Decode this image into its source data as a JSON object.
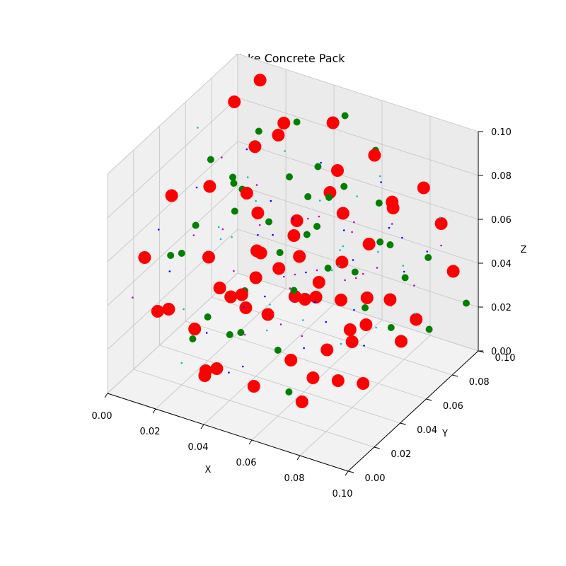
{
  "chart_data": {
    "type": "scatter",
    "projection": "3d",
    "title": "Fake Concrete Pack",
    "xlabel": "X",
    "ylabel": "Y",
    "zlabel": "Z",
    "xlim": [
      0,
      0.1
    ],
    "ylim": [
      0,
      0.1
    ],
    "zlim": [
      0,
      0.1
    ],
    "xticks": [
      "0.00",
      "0.02",
      "0.04",
      "0.06",
      "0.08",
      "0.10"
    ],
    "yticks": [
      "0.00",
      "0.02",
      "0.04",
      "0.06",
      "0.08",
      "0.10"
    ],
    "zticks": [
      "0.00",
      "0.02",
      "0.04",
      "0.06",
      "0.08",
      "0.10"
    ],
    "grid": true,
    "series": [
      {
        "color": "#ff0000",
        "size": "large",
        "points": [
          [
            0.004,
            0.09,
            0.085
          ],
          [
            0.012,
            0.095,
            0.095
          ],
          [
            0.018,
            0.08,
            0.075
          ],
          [
            0.025,
            0.085,
            0.08
          ],
          [
            0.03,
            0.06,
            0.06
          ],
          [
            0.035,
            0.05,
            0.05
          ],
          [
            0.04,
            0.04,
            0.045
          ],
          [
            0.045,
            0.06,
            0.055
          ],
          [
            0.05,
            0.055,
            0.05
          ],
          [
            0.06,
            0.07,
            0.065
          ],
          [
            0.065,
            0.06,
            0.05
          ],
          [
            0.07,
            0.05,
            0.04
          ],
          [
            0.075,
            0.08,
            0.07
          ],
          [
            0.08,
            0.04,
            0.03
          ],
          [
            0.085,
            0.06,
            0.04
          ],
          [
            0.09,
            0.03,
            0.02
          ],
          [
            0.095,
            0.05,
            0.03
          ],
          [
            0.01,
            0.02,
            0.03
          ],
          [
            0.02,
            0.03,
            0.02
          ],
          [
            0.03,
            0.02,
            0.01
          ],
          [
            0.04,
            0.01,
            0.02
          ],
          [
            0.05,
            0.02,
            0.01
          ],
          [
            0.06,
            0.03,
            0.02
          ],
          [
            0.07,
            0.02,
            0.01
          ],
          [
            0.08,
            0.01,
            0.03
          ],
          [
            0.015,
            0.05,
            0.04
          ],
          [
            0.025,
            0.04,
            0.035
          ],
          [
            0.035,
            0.03,
            0.04
          ],
          [
            0.045,
            0.04,
            0.03
          ],
          [
            0.055,
            0.05,
            0.035
          ],
          [
            0.065,
            0.04,
            0.045
          ],
          [
            0.075,
            0.03,
            0.03
          ],
          [
            0.085,
            0.02,
            0.025
          ],
          [
            0.02,
            0.07,
            0.06
          ],
          [
            0.03,
            0.08,
            0.09
          ],
          [
            0.045,
            0.09,
            0.09
          ],
          [
            0.055,
            0.075,
            0.08
          ],
          [
            0.065,
            0.085,
            0.085
          ],
          [
            0.08,
            0.095,
            0.07
          ],
          [
            0.09,
            0.09,
            0.06
          ],
          [
            0.005,
            0.04,
            0.07
          ],
          [
            0.01,
            0.06,
            0.065
          ],
          [
            0.02,
            0.01,
            0.04
          ],
          [
            0.035,
            0.01,
            0.015
          ],
          [
            0.05,
            0.07,
            0.03
          ],
          [
            0.06,
            0.09,
            0.04
          ],
          [
            0.07,
            0.07,
            0.03
          ],
          [
            0.085,
            0.08,
            0.02
          ],
          [
            0.095,
            0.09,
            0.04
          ],
          [
            0.025,
            0.06,
            0.015
          ],
          [
            0.04,
            0.07,
            0.02
          ],
          [
            0.055,
            0.03,
            0.06
          ],
          [
            0.06,
            0.06,
            0.08
          ],
          [
            0.07,
            0.09,
            0.06
          ],
          [
            0.015,
            0.09,
            0.02
          ],
          [
            0.03,
            0.09,
            0.04
          ],
          [
            0.045,
            0.02,
            0.05
          ],
          [
            0.075,
            0.06,
            0.025
          ],
          [
            0.01,
            0.01,
            0.06
          ],
          [
            0.09,
            0.02,
            0.05
          ]
        ]
      },
      {
        "color": "#008000",
        "size": "medium",
        "points": [
          [
            0.005,
            0.07,
            0.07
          ],
          [
            0.01,
            0.085,
            0.05
          ],
          [
            0.015,
            0.07,
            0.05
          ],
          [
            0.02,
            0.06,
            0.07
          ],
          [
            0.025,
            0.07,
            0.09
          ],
          [
            0.03,
            0.09,
            0.085
          ],
          [
            0.035,
            0.075,
            0.07
          ],
          [
            0.04,
            0.08,
            0.06
          ],
          [
            0.045,
            0.07,
            0.05
          ],
          [
            0.05,
            0.09,
            0.095
          ],
          [
            0.055,
            0.08,
            0.07
          ],
          [
            0.06,
            0.095,
            0.08
          ],
          [
            0.065,
            0.07,
            0.04
          ],
          [
            0.07,
            0.08,
            0.05
          ],
          [
            0.075,
            0.09,
            0.03
          ],
          [
            0.08,
            0.07,
            0.02
          ],
          [
            0.085,
            0.09,
            0.01
          ],
          [
            0.09,
            0.08,
            0.05
          ],
          [
            0.095,
            0.1,
            0.02
          ],
          [
            0.01,
            0.03,
            0.05
          ],
          [
            0.02,
            0.04,
            0.02
          ],
          [
            0.03,
            0.05,
            0.03
          ],
          [
            0.04,
            0.05,
            0.065
          ],
          [
            0.05,
            0.04,
            0.06
          ],
          [
            0.06,
            0.05,
            0.07
          ],
          [
            0.07,
            0.04,
            0.06
          ],
          [
            0.08,
            0.05,
            0.04
          ],
          [
            0.04,
            0.02,
            0.03
          ],
          [
            0.05,
            0.01,
            0.04
          ],
          [
            0.06,
            0.02,
            0.03
          ],
          [
            0.07,
            0.01,
            0.02
          ],
          [
            0.02,
            0.02,
            0.06
          ],
          [
            0.03,
            0.01,
            0.03
          ],
          [
            0.015,
            0.04,
            0.06
          ],
          [
            0.025,
            0.05,
            0.08
          ],
          [
            0.055,
            0.06,
            0.09
          ],
          [
            0.065,
            0.05,
            0.085
          ],
          [
            0.075,
            0.07,
            0.075
          ],
          [
            0.085,
            0.06,
            0.065
          ],
          [
            0.045,
            0.06,
            0.03
          ]
        ]
      },
      {
        "color": "#0000ff",
        "size": "tiny",
        "points": [
          [
            0.005,
            0.03,
            0.06
          ],
          [
            0.01,
            0.05,
            0.07
          ],
          [
            0.015,
            0.02,
            0.05
          ],
          [
            0.02,
            0.07,
            0.08
          ],
          [
            0.025,
            0.03,
            0.02
          ],
          [
            0.03,
            0.06,
            0.05
          ],
          [
            0.035,
            0.04,
            0.03
          ],
          [
            0.04,
            0.09,
            0.07
          ],
          [
            0.045,
            0.01,
            0.02
          ],
          [
            0.05,
            0.06,
            0.04
          ],
          [
            0.055,
            0.08,
            0.05
          ],
          [
            0.06,
            0.01,
            0.06
          ],
          [
            0.065,
            0.09,
            0.07
          ],
          [
            0.07,
            0.03,
            0.05
          ],
          [
            0.075,
            0.05,
            0.06
          ],
          [
            0.08,
            0.08,
            0.04
          ],
          [
            0.085,
            0.04,
            0.03
          ],
          [
            0.09,
            0.06,
            0.07
          ],
          [
            0.095,
            0.07,
            0.06
          ],
          [
            0.02,
            0.09,
            0.03
          ],
          [
            0.04,
            0.03,
            0.01
          ],
          [
            0.06,
            0.04,
            0.02
          ],
          [
            0.08,
            0.02,
            0.05
          ],
          [
            0.03,
            0.07,
            0.06
          ],
          [
            0.05,
            0.05,
            0.07
          ],
          [
            0.07,
            0.06,
            0.03
          ],
          [
            0.09,
            0.05,
            0.08
          ]
        ]
      },
      {
        "color": "#00bfbf",
        "size": "tiny",
        "points": [
          [
            0.005,
            0.06,
            0.09
          ],
          [
            0.01,
            0.04,
            0.02
          ],
          [
            0.015,
            0.08,
            0.06
          ],
          [
            0.02,
            0.05,
            0.05
          ],
          [
            0.025,
            0.09,
            0.07
          ],
          [
            0.03,
            0.04,
            0.06
          ],
          [
            0.035,
            0.06,
            0.02
          ],
          [
            0.04,
            0.06,
            0.04
          ],
          [
            0.045,
            0.08,
            0.06
          ],
          [
            0.05,
            0.03,
            0.03
          ],
          [
            0.055,
            0.09,
            0.06
          ],
          [
            0.06,
            0.07,
            0.05
          ],
          [
            0.065,
            0.03,
            0.04
          ],
          [
            0.07,
            0.08,
            0.08
          ],
          [
            0.075,
            0.04,
            0.07
          ],
          [
            0.08,
            0.06,
            0.06
          ],
          [
            0.085,
            0.07,
            0.05
          ],
          [
            0.09,
            0.04,
            0.04
          ],
          [
            0.095,
            0.08,
            0.07
          ],
          [
            0.02,
            0.02,
            0.01
          ],
          [
            0.04,
            0.04,
            0.08
          ],
          [
            0.06,
            0.06,
            0.01
          ],
          [
            0.08,
            0.03,
            0.07
          ],
          [
            0.03,
            0.03,
            0.07
          ],
          [
            0.05,
            0.08,
            0.03
          ],
          [
            0.07,
            0.05,
            0.02
          ],
          [
            0.09,
            0.07,
            0.03
          ]
        ]
      },
      {
        "color": "#bf00bf",
        "size": "tiny",
        "points": [
          [
            0.005,
            0.01,
            0.04
          ],
          [
            0.01,
            0.07,
            0.04
          ],
          [
            0.015,
            0.06,
            0.08
          ],
          [
            0.02,
            0.08,
            0.04
          ],
          [
            0.025,
            0.02,
            0.07
          ],
          [
            0.03,
            0.08,
            0.02
          ],
          [
            0.035,
            0.05,
            0.08
          ],
          [
            0.04,
            0.07,
            0.03
          ],
          [
            0.045,
            0.05,
            0.02
          ],
          [
            0.05,
            0.07,
            0.06
          ],
          [
            0.055,
            0.04,
            0.04
          ],
          [
            0.06,
            0.08,
            0.03
          ],
          [
            0.065,
            0.02,
            0.06
          ],
          [
            0.07,
            0.06,
            0.07
          ],
          [
            0.075,
            0.08,
            0.06
          ],
          [
            0.08,
            0.04,
            0.08
          ],
          [
            0.085,
            0.05,
            0.06
          ],
          [
            0.09,
            0.03,
            0.07
          ],
          [
            0.095,
            0.06,
            0.05
          ],
          [
            0.02,
            0.06,
            0.03
          ],
          [
            0.04,
            0.08,
            0.05
          ],
          [
            0.06,
            0.05,
            0.05
          ],
          [
            0.08,
            0.07,
            0.03
          ],
          [
            0.03,
            0.05,
            0.01
          ],
          [
            0.05,
            0.09,
            0.02
          ],
          [
            0.07,
            0.02,
            0.04
          ],
          [
            0.09,
            0.09,
            0.05
          ]
        ]
      }
    ]
  }
}
